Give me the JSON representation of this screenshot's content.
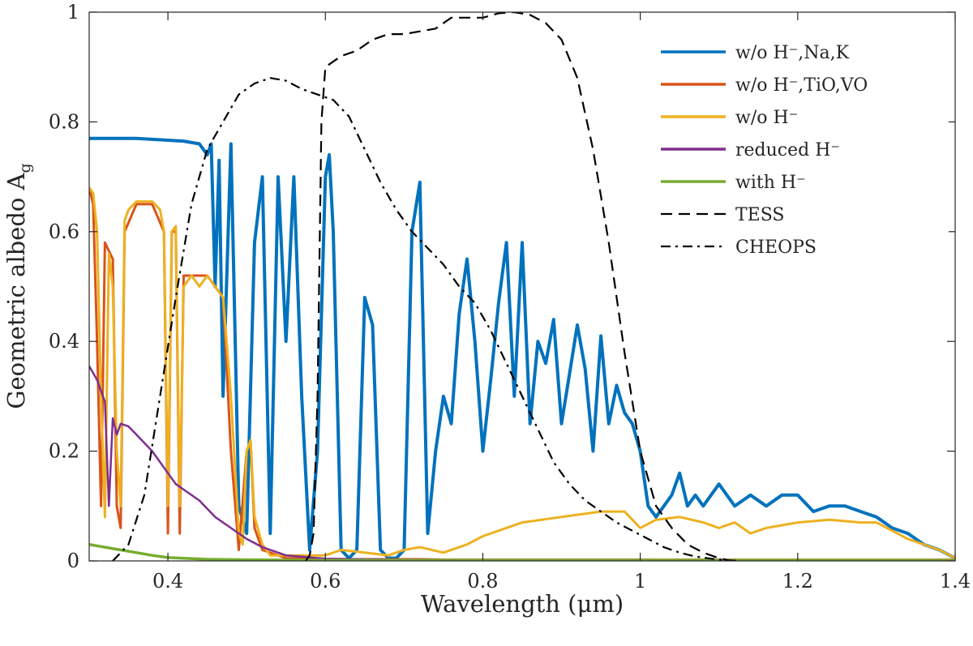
{
  "chart_data": {
    "type": "line",
    "xlabel": "Wavelength (μm)",
    "ylabel": "Geometric albedo A",
    "ylabel_sub": "g",
    "xlim": [
      0.3,
      1.4
    ],
    "ylim": [
      0,
      1
    ],
    "xticks": [
      0.4,
      0.6,
      0.8,
      1.0,
      1.2,
      1.4
    ],
    "xtick_labels": [
      "0.4",
      "0.6",
      "0.8",
      "1",
      "1.2",
      "1.4"
    ],
    "yticks": [
      0,
      0.2,
      0.4,
      0.6,
      0.8,
      1.0
    ],
    "ytick_labels": [
      "0",
      "0.2",
      "0.4",
      "0.6",
      "0.8",
      "1"
    ],
    "grid": false,
    "legend_position": "top-right",
    "series": [
      {
        "name": "w/o H⁻,Na,K",
        "color": "#0072BD",
        "style": "solid",
        "x": [
          0.3,
          0.36,
          0.42,
          0.44,
          0.45,
          0.455,
          0.46,
          0.465,
          0.47,
          0.48,
          0.49,
          0.5,
          0.51,
          0.52,
          0.53,
          0.54,
          0.55,
          0.56,
          0.57,
          0.58,
          0.59,
          0.6,
          0.605,
          0.61,
          0.62,
          0.63,
          0.64,
          0.65,
          0.66,
          0.67,
          0.68,
          0.69,
          0.7,
          0.71,
          0.72,
          0.73,
          0.74,
          0.75,
          0.76,
          0.77,
          0.78,
          0.79,
          0.8,
          0.81,
          0.82,
          0.83,
          0.84,
          0.85,
          0.86,
          0.87,
          0.88,
          0.89,
          0.9,
          0.91,
          0.92,
          0.93,
          0.94,
          0.95,
          0.96,
          0.97,
          0.98,
          0.99,
          1.0,
          1.01,
          1.02,
          1.03,
          1.04,
          1.05,
          1.06,
          1.07,
          1.08,
          1.1,
          1.12,
          1.14,
          1.16,
          1.18,
          1.2,
          1.22,
          1.24,
          1.26,
          1.28,
          1.3,
          1.32,
          1.34,
          1.36,
          1.38,
          1.4
        ],
        "y": [
          0.77,
          0.77,
          0.765,
          0.76,
          0.74,
          0.76,
          0.5,
          0.73,
          0.3,
          0.76,
          0.1,
          0.05,
          0.58,
          0.7,
          0.05,
          0.7,
          0.4,
          0.7,
          0.3,
          0.02,
          0.2,
          0.7,
          0.74,
          0.6,
          0.02,
          0.005,
          0.02,
          0.48,
          0.43,
          0.02,
          0.005,
          0.005,
          0.02,
          0.6,
          0.69,
          0.05,
          0.2,
          0.3,
          0.25,
          0.45,
          0.55,
          0.4,
          0.2,
          0.33,
          0.47,
          0.58,
          0.3,
          0.58,
          0.25,
          0.4,
          0.36,
          0.44,
          0.25,
          0.34,
          0.43,
          0.35,
          0.2,
          0.41,
          0.25,
          0.32,
          0.27,
          0.25,
          0.2,
          0.1,
          0.08,
          0.1,
          0.12,
          0.16,
          0.1,
          0.12,
          0.1,
          0.14,
          0.1,
          0.12,
          0.1,
          0.12,
          0.12,
          0.09,
          0.1,
          0.1,
          0.09,
          0.08,
          0.06,
          0.05,
          0.03,
          0.02,
          0.005
        ]
      },
      {
        "name": "w/o H⁻,TiO,VO",
        "color": "#D95319",
        "style": "solid",
        "x": [
          0.3,
          0.305,
          0.31,
          0.315,
          0.32,
          0.33,
          0.335,
          0.34,
          0.345,
          0.36,
          0.38,
          0.395,
          0.4,
          0.405,
          0.41,
          0.415,
          0.42,
          0.43,
          0.44,
          0.45,
          0.46,
          0.47,
          0.48,
          0.49,
          0.5,
          0.505,
          0.51,
          0.52,
          0.55,
          0.6,
          0.65,
          0.7,
          0.72,
          0.75,
          0.8,
          0.85,
          0.9,
          0.95,
          1.0,
          1.05,
          1.1,
          1.15,
          1.2,
          1.25,
          1.3,
          1.35,
          1.4
        ],
        "y": [
          0.68,
          0.65,
          0.4,
          0.1,
          0.58,
          0.55,
          0.1,
          0.06,
          0.6,
          0.65,
          0.65,
          0.6,
          0.05,
          0.6,
          0.6,
          0.05,
          0.52,
          0.52,
          0.52,
          0.52,
          0.5,
          0.48,
          0.2,
          0.02,
          0.2,
          0.22,
          0.06,
          0.02,
          0.005,
          0.003,
          0.003,
          0.003,
          0.003,
          0.002,
          0.002,
          0.002,
          0.002,
          0.002,
          0.002,
          0.002,
          0.002,
          0.002,
          0.002,
          0.002,
          0.002,
          0.002,
          0.002
        ]
      },
      {
        "name": "w/o H⁻",
        "color": "#EDB120",
        "style": "solid",
        "x": [
          0.3,
          0.305,
          0.31,
          0.315,
          0.32,
          0.325,
          0.33,
          0.335,
          0.34,
          0.345,
          0.35,
          0.36,
          0.38,
          0.39,
          0.395,
          0.4,
          0.405,
          0.41,
          0.415,
          0.42,
          0.43,
          0.44,
          0.45,
          0.46,
          0.47,
          0.48,
          0.49,
          0.495,
          0.5,
          0.505,
          0.51,
          0.52,
          0.53,
          0.55,
          0.6,
          0.62,
          0.65,
          0.68,
          0.7,
          0.72,
          0.75,
          0.78,
          0.8,
          0.85,
          0.9,
          0.95,
          0.98,
          1.0,
          1.02,
          1.05,
          1.08,
          1.1,
          1.12,
          1.14,
          1.16,
          1.2,
          1.24,
          1.28,
          1.3,
          1.34,
          1.38,
          1.4
        ],
        "y": [
          0.68,
          0.67,
          0.6,
          0.3,
          0.08,
          0.56,
          0.5,
          0.2,
          0.1,
          0.62,
          0.64,
          0.655,
          0.655,
          0.64,
          0.6,
          0.1,
          0.6,
          0.61,
          0.1,
          0.5,
          0.52,
          0.5,
          0.52,
          0.5,
          0.48,
          0.3,
          0.05,
          0.03,
          0.2,
          0.22,
          0.08,
          0.03,
          0.01,
          0.01,
          0.01,
          0.02,
          0.015,
          0.01,
          0.02,
          0.025,
          0.015,
          0.03,
          0.045,
          0.07,
          0.08,
          0.09,
          0.09,
          0.06,
          0.075,
          0.08,
          0.07,
          0.06,
          0.07,
          0.05,
          0.06,
          0.07,
          0.075,
          0.07,
          0.07,
          0.04,
          0.02,
          0.005
        ]
      },
      {
        "name": "reduced H⁻",
        "color": "#7E2F8E",
        "style": "solid",
        "x": [
          0.3,
          0.31,
          0.32,
          0.325,
          0.33,
          0.335,
          0.34,
          0.35,
          0.36,
          0.38,
          0.4,
          0.41,
          0.42,
          0.44,
          0.46,
          0.48,
          0.5,
          0.52,
          0.55,
          0.6,
          0.7,
          0.8,
          0.9,
          1.0,
          1.1,
          1.2,
          1.3,
          1.4
        ],
        "y": [
          0.355,
          0.33,
          0.29,
          0.1,
          0.26,
          0.23,
          0.25,
          0.245,
          0.23,
          0.2,
          0.16,
          0.14,
          0.13,
          0.11,
          0.08,
          0.06,
          0.04,
          0.025,
          0.01,
          0.004,
          0.002,
          0.002,
          0.002,
          0.002,
          0.001,
          0.001,
          0.001,
          0.001
        ]
      },
      {
        "name": "with H⁻",
        "color": "#77AC30",
        "style": "solid",
        "x": [
          0.3,
          0.32,
          0.34,
          0.36,
          0.38,
          0.4,
          0.45,
          0.5,
          0.6,
          0.8,
          1.0,
          1.2,
          1.4
        ],
        "y": [
          0.03,
          0.025,
          0.02,
          0.015,
          0.01,
          0.006,
          0.003,
          0.002,
          0.001,
          0.001,
          0.001,
          0.001,
          0.001
        ]
      },
      {
        "name": "TESS",
        "color": "#000000",
        "style": "dashed",
        "x": [
          0.575,
          0.58,
          0.585,
          0.59,
          0.595,
          0.6,
          0.62,
          0.64,
          0.66,
          0.68,
          0.7,
          0.72,
          0.74,
          0.76,
          0.78,
          0.8,
          0.82,
          0.84,
          0.86,
          0.88,
          0.9,
          0.92,
          0.94,
          0.96,
          0.98,
          1.0,
          1.02,
          1.04,
          1.06,
          1.08,
          1.1,
          1.115
        ],
        "y": [
          0.0,
          0.01,
          0.05,
          0.3,
          0.8,
          0.9,
          0.92,
          0.93,
          0.95,
          0.96,
          0.96,
          0.965,
          0.97,
          0.99,
          0.99,
          0.99,
          0.998,
          1.0,
          0.995,
          0.98,
          0.95,
          0.88,
          0.75,
          0.58,
          0.38,
          0.2,
          0.1,
          0.06,
          0.03,
          0.015,
          0.005,
          0.0
        ]
      },
      {
        "name": "CHEOPS",
        "color": "#000000",
        "style": "dashdot",
        "x": [
          0.33,
          0.35,
          0.37,
          0.39,
          0.41,
          0.43,
          0.45,
          0.47,
          0.49,
          0.51,
          0.53,
          0.55,
          0.57,
          0.59,
          0.61,
          0.63,
          0.65,
          0.67,
          0.69,
          0.71,
          0.73,
          0.75,
          0.77,
          0.79,
          0.81,
          0.83,
          0.85,
          0.87,
          0.89,
          0.91,
          0.93,
          0.95,
          0.97,
          0.99,
          1.01,
          1.03,
          1.05,
          1.07,
          1.09,
          1.11,
          1.125
        ],
        "y": [
          0.0,
          0.03,
          0.12,
          0.3,
          0.48,
          0.65,
          0.75,
          0.8,
          0.85,
          0.87,
          0.88,
          0.875,
          0.86,
          0.85,
          0.84,
          0.81,
          0.75,
          0.69,
          0.64,
          0.6,
          0.57,
          0.54,
          0.5,
          0.47,
          0.42,
          0.36,
          0.3,
          0.24,
          0.18,
          0.14,
          0.11,
          0.09,
          0.07,
          0.055,
          0.04,
          0.025,
          0.015,
          0.008,
          0.004,
          0.001,
          0.0
        ]
      }
    ]
  }
}
